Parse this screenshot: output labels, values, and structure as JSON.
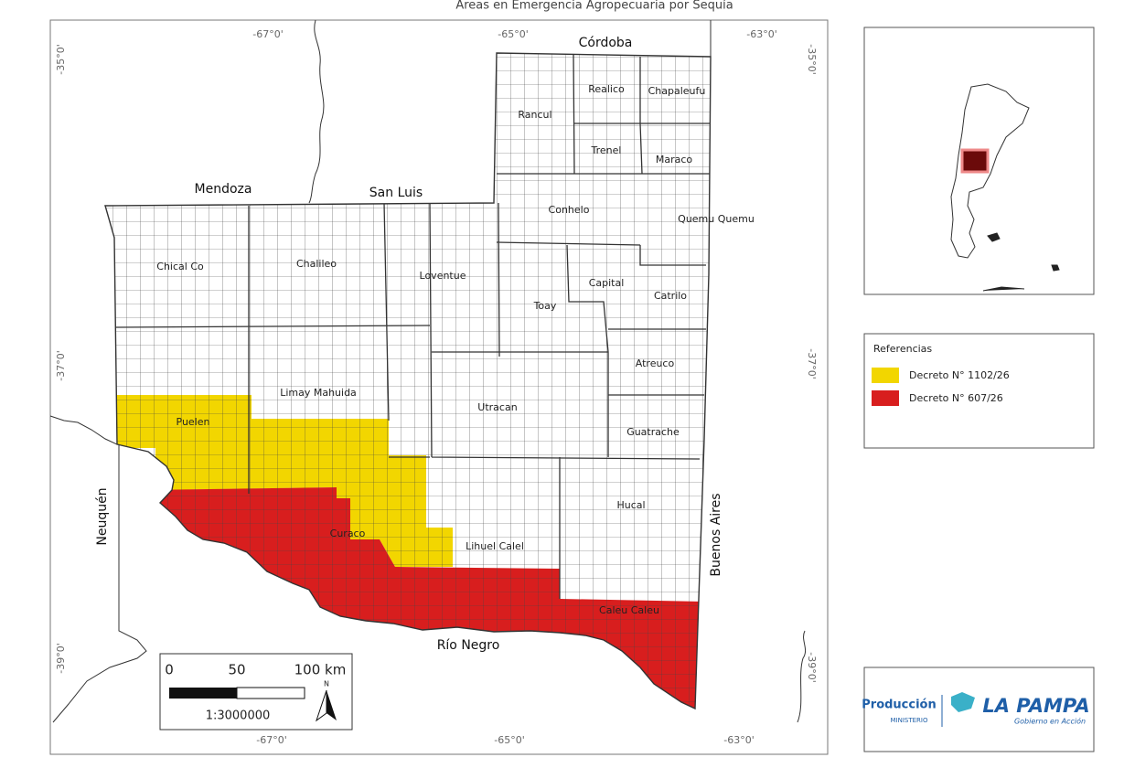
{
  "title": "Áreas en Emergencia Agropecuaria por Sequía",
  "coordinates": {
    "top": [
      "-67°0'",
      "-65°0'",
      "-63°0'"
    ],
    "bottom": [
      "-67°0'",
      "-65°0'",
      "-63°0'"
    ],
    "left": [
      "-35°0'",
      "-37°0'",
      "-39°0'"
    ],
    "right": [
      "-35°0'",
      "-37°0'",
      "-39°0'"
    ]
  },
  "provinces": [
    "Córdoba",
    "Mendoza",
    "San Luis",
    "Neuquén",
    "Buenos Aires",
    "Río Negro"
  ],
  "departments": [
    "Realico",
    "Chapaleufu",
    "Rancul",
    "Trenel",
    "Maraco",
    "Conhelo",
    "Quemu Quemu",
    "Chical Co",
    "Chalileo",
    "Loventue",
    "Capital",
    "Catrilo",
    "Toay",
    "Atreuco",
    "Limay Mahuida",
    "Utracan",
    "Puelen",
    "Guatrache",
    "Hucal",
    "Curaco",
    "Lihuel Calel",
    "Caleu Caleu"
  ],
  "legend": {
    "title": "Referencias",
    "items": [
      {
        "label": "Decreto N° 1102/26",
        "color": "#f2d600"
      },
      {
        "label": "Decreto N° 607/26",
        "color": "#d81e1e"
      }
    ]
  },
  "scale": {
    "labels": [
      "0",
      "50",
      "100 km"
    ],
    "ratio": "1:3000000",
    "north": "N"
  },
  "logo": {
    "ministry": "Producción",
    "subtitle": "MINISTERIO",
    "province": "LA PAMPA",
    "slogan": "Gobierno en Acción"
  }
}
